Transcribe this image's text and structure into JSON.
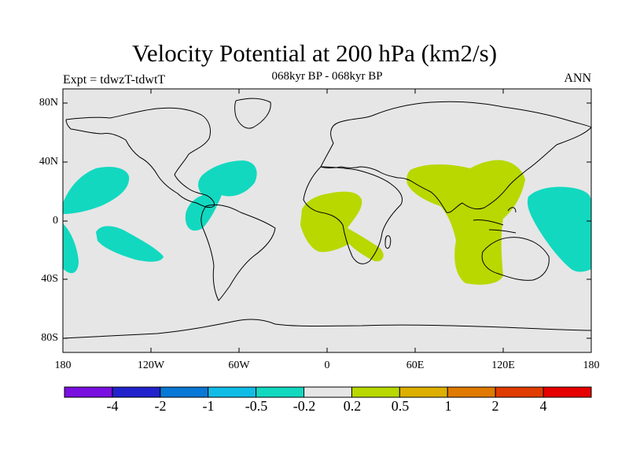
{
  "title": "Velocity Potential at 200 hPa (km2/s)",
  "subtitle": "068kyr BP - 068kyr BP",
  "left_label": "Expt = tdwzT-tdwtT",
  "right_label": "ANN",
  "lat_ticks": [
    "80N",
    "40N",
    "0",
    "40S",
    "80S"
  ],
  "lon_ticks": [
    "180",
    "120W",
    "60W",
    "0",
    "60E",
    "120E",
    "180"
  ],
  "colorbar": {
    "colors": [
      "#7a10e0",
      "#2222cc",
      "#0878d6",
      "#10bce6",
      "#12d8c0",
      "#e6e6e6",
      "#b8d800",
      "#ddb000",
      "#e07a00",
      "#e03c00",
      "#e60000"
    ],
    "labels": [
      "-4",
      "-2",
      "-1",
      "-0.5",
      "-0.2",
      "0.2",
      "0.5",
      "1",
      "2",
      "4"
    ]
  }
}
